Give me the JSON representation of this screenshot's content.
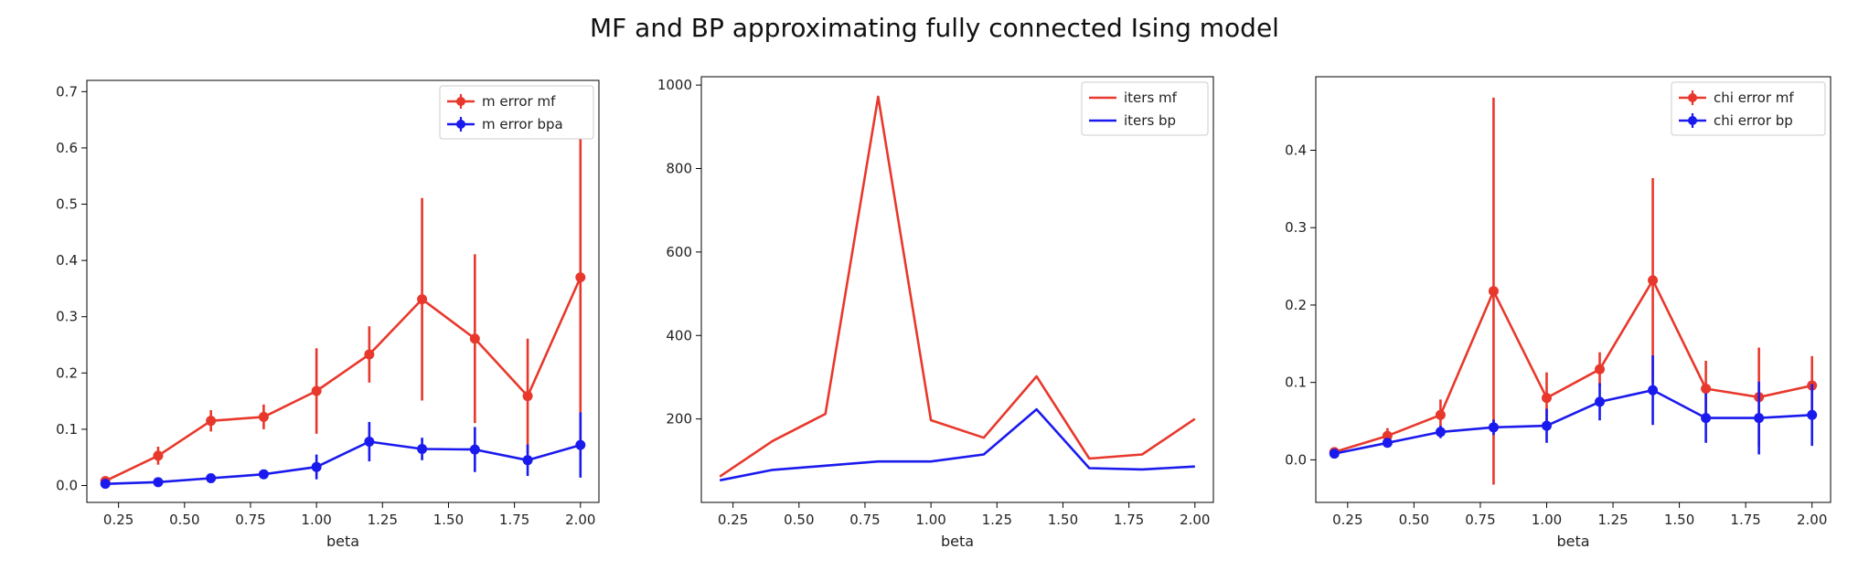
{
  "title": "MF and BP approximating fully connected Ising model",
  "colors": {
    "mf": "#e8382c",
    "bp": "#1a1aee"
  },
  "chart_data": [
    {
      "type": "line",
      "errorbars": true,
      "x": [
        0.2,
        0.4,
        0.6,
        0.8,
        1.0,
        1.2,
        1.4,
        1.6,
        1.8,
        2.0
      ],
      "xlabel": "beta",
      "ylabel": "",
      "xlim": [
        0.13,
        2.07
      ],
      "ylim": [
        -0.03,
        0.72
      ],
      "xticks": [
        0.25,
        0.5,
        0.75,
        1.0,
        1.25,
        1.5,
        1.75,
        2.0
      ],
      "xtick_labels": [
        "0.25",
        "0.50",
        "0.75",
        "1.00",
        "1.25",
        "1.50",
        "1.75",
        "2.00"
      ],
      "yticks": [
        0.0,
        0.1,
        0.2,
        0.3,
        0.4,
        0.5,
        0.6,
        0.7
      ],
      "ytick_labels": [
        "0.0",
        "0.1",
        "0.2",
        "0.3",
        "0.4",
        "0.5",
        "0.6",
        "0.7"
      ],
      "legend": "top-right",
      "grid": false,
      "series": [
        {
          "name": "m error mf",
          "color": "#e8382c",
          "values": [
            0.008,
            0.053,
            0.115,
            0.122,
            0.168,
            0.233,
            0.331,
            0.261,
            0.159,
            0.37
          ],
          "err": [
            0.005,
            0.016,
            0.019,
            0.022,
            0.076,
            0.05,
            0.18,
            0.15,
            0.102,
            0.31
          ]
        },
        {
          "name": "m error bpa",
          "color": "#1a1aee",
          "values": [
            0.003,
            0.006,
            0.013,
            0.02,
            0.033,
            0.078,
            0.065,
            0.064,
            0.045,
            0.072
          ],
          "err": [
            0.002,
            0.003,
            0.005,
            0.007,
            0.022,
            0.035,
            0.02,
            0.04,
            0.028,
            0.058
          ]
        }
      ]
    },
    {
      "type": "line",
      "errorbars": false,
      "x": [
        0.2,
        0.4,
        0.6,
        0.8,
        1.0,
        1.2,
        1.4,
        1.6,
        1.8,
        2.0
      ],
      "xlabel": "beta",
      "ylabel": "",
      "xlim": [
        0.13,
        2.07
      ],
      "ylim": [
        0,
        1020
      ],
      "xticks": [
        0.25,
        0.5,
        0.75,
        1.0,
        1.25,
        1.5,
        1.75,
        2.0
      ],
      "xtick_labels": [
        "0.25",
        "0.50",
        "0.75",
        "1.00",
        "1.25",
        "1.50",
        "1.75",
        "2.00"
      ],
      "yticks": [
        200,
        400,
        600,
        800,
        1000
      ],
      "ytick_labels": [
        "200",
        "400",
        "600",
        "800",
        "1000"
      ],
      "legend": "top-right",
      "grid": false,
      "series": [
        {
          "name": "iters mf",
          "color": "#e8382c",
          "values": [
            62,
            147,
            212,
            972,
            197,
            155,
            302,
            105,
            115,
            200
          ]
        },
        {
          "name": "iters bp",
          "color": "#1a1aee",
          "values": [
            53,
            78,
            88,
            98,
            98,
            115,
            223,
            82,
            79,
            86
          ]
        }
      ]
    },
    {
      "type": "line",
      "errorbars": true,
      "x": [
        0.2,
        0.4,
        0.6,
        0.8,
        1.0,
        1.2,
        1.4,
        1.6,
        1.8,
        2.0
      ],
      "xlabel": "beta",
      "ylabel": "",
      "xlim": [
        0.13,
        2.07
      ],
      "ylim": [
        -0.055,
        0.495
      ],
      "xticks": [
        0.25,
        0.5,
        0.75,
        1.0,
        1.25,
        1.5,
        1.75,
        2.0
      ],
      "xtick_labels": [
        "0.25",
        "0.50",
        "0.75",
        "1.00",
        "1.25",
        "1.50",
        "1.75",
        "2.00"
      ],
      "yticks": [
        0.0,
        0.1,
        0.2,
        0.3,
        0.4
      ],
      "ytick_labels": [
        "0.0",
        "0.1",
        "0.2",
        "0.3",
        "0.4"
      ],
      "legend": "top-right",
      "grid": false,
      "series": [
        {
          "name": "chi error mf",
          "color": "#e8382c",
          "values": [
            0.01,
            0.031,
            0.058,
            0.218,
            0.08,
            0.117,
            0.232,
            0.092,
            0.081,
            0.096
          ],
          "err": [
            0.004,
            0.01,
            0.02,
            0.25,
            0.033,
            0.022,
            0.132,
            0.036,
            0.064,
            0.038
          ]
        },
        {
          "name": "chi error bp",
          "color": "#1a1aee",
          "values": [
            0.008,
            0.022,
            0.036,
            0.042,
            0.044,
            0.075,
            0.09,
            0.054,
            0.054,
            0.058
          ],
          "err": [
            0.003,
            0.006,
            0.008,
            0.01,
            0.022,
            0.024,
            0.045,
            0.032,
            0.047,
            0.04
          ]
        }
      ]
    }
  ]
}
